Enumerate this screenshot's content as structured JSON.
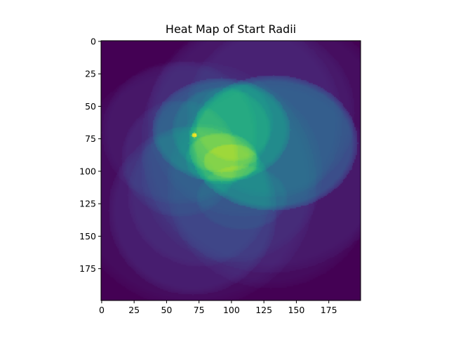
{
  "chart_data": {
    "type": "heatmap",
    "title": "Heat Map of Start Radii",
    "xlabel": "",
    "ylabel": "",
    "grid_size": [
      200,
      200
    ],
    "x_range": [
      0,
      199
    ],
    "y_range": [
      0,
      199
    ],
    "y_axis_direction": "top-to-bottom",
    "x_ticks": [
      0,
      25,
      50,
      75,
      100,
      125,
      150,
      175
    ],
    "y_ticks": [
      0,
      25,
      50,
      75,
      100,
      125,
      150,
      175
    ],
    "colormap": "viridis",
    "background_value": 0.0,
    "regions": [
      {
        "shape": "circle",
        "cx": 130,
        "cy": 78,
        "rx": 100,
        "ry": 100,
        "value": 0.06
      },
      {
        "shape": "circle",
        "cx": 70,
        "cy": 110,
        "rx": 95,
        "ry": 95,
        "value": 0.05
      },
      {
        "shape": "circle",
        "cx": 130,
        "cy": 110,
        "rx": 80,
        "ry": 80,
        "value": 0.05
      },
      {
        "shape": "circle",
        "cx": 60,
        "cy": 70,
        "rx": 60,
        "ry": 55,
        "value": 0.05
      },
      {
        "shape": "circle",
        "cx": 60,
        "cy": 90,
        "rx": 45,
        "ry": 45,
        "value": 0.06
      },
      {
        "shape": "circle",
        "cx": 70,
        "cy": 130,
        "rx": 65,
        "ry": 65,
        "value": 0.08
      },
      {
        "shape": "circle",
        "cx": 130,
        "cy": 55,
        "rx": 65,
        "ry": 65,
        "value": 0.05
      },
      {
        "shape": "circle",
        "cx": 75,
        "cy": 118,
        "rx": 55,
        "ry": 55,
        "value": 0.05
      },
      {
        "shape": "circle",
        "cx": 110,
        "cy": 60,
        "rx": 75,
        "ry": 75,
        "value": 0.04
      },
      {
        "shape": "circle",
        "cx": 100,
        "cy": 100,
        "rx": 70,
        "ry": 70,
        "value": 0.04
      },
      {
        "shape": "ellipse",
        "cx": 92,
        "cy": 68,
        "rx": 53,
        "ry": 40,
        "value": 0.19
      },
      {
        "shape": "ellipse",
        "cx": 92,
        "cy": 68,
        "rx": 38,
        "ry": 33,
        "value": 0.1
      },
      {
        "shape": "circle",
        "cx": 102,
        "cy": 62,
        "rx": 30,
        "ry": 30,
        "value": 0.06
      },
      {
        "shape": "ellipse",
        "cx": 92,
        "cy": 90,
        "rx": 28,
        "ry": 20,
        "value": 0.1
      },
      {
        "shape": "ellipse",
        "cx": 108,
        "cy": 120,
        "rx": 35,
        "ry": 25,
        "value": 0.06
      },
      {
        "shape": "ellipse",
        "cx": 132,
        "cy": 78,
        "rx": 65,
        "ry": 52,
        "value": 0.27
      },
      {
        "shape": "ellipse",
        "cx": 100,
        "cy": 92,
        "rx": 22,
        "ry": 13,
        "value": 0.09
      },
      {
        "shape": "circle",
        "cx": 71,
        "cy": 72,
        "rx": 2,
        "ry": 2,
        "value": 0.5
      }
    ]
  }
}
